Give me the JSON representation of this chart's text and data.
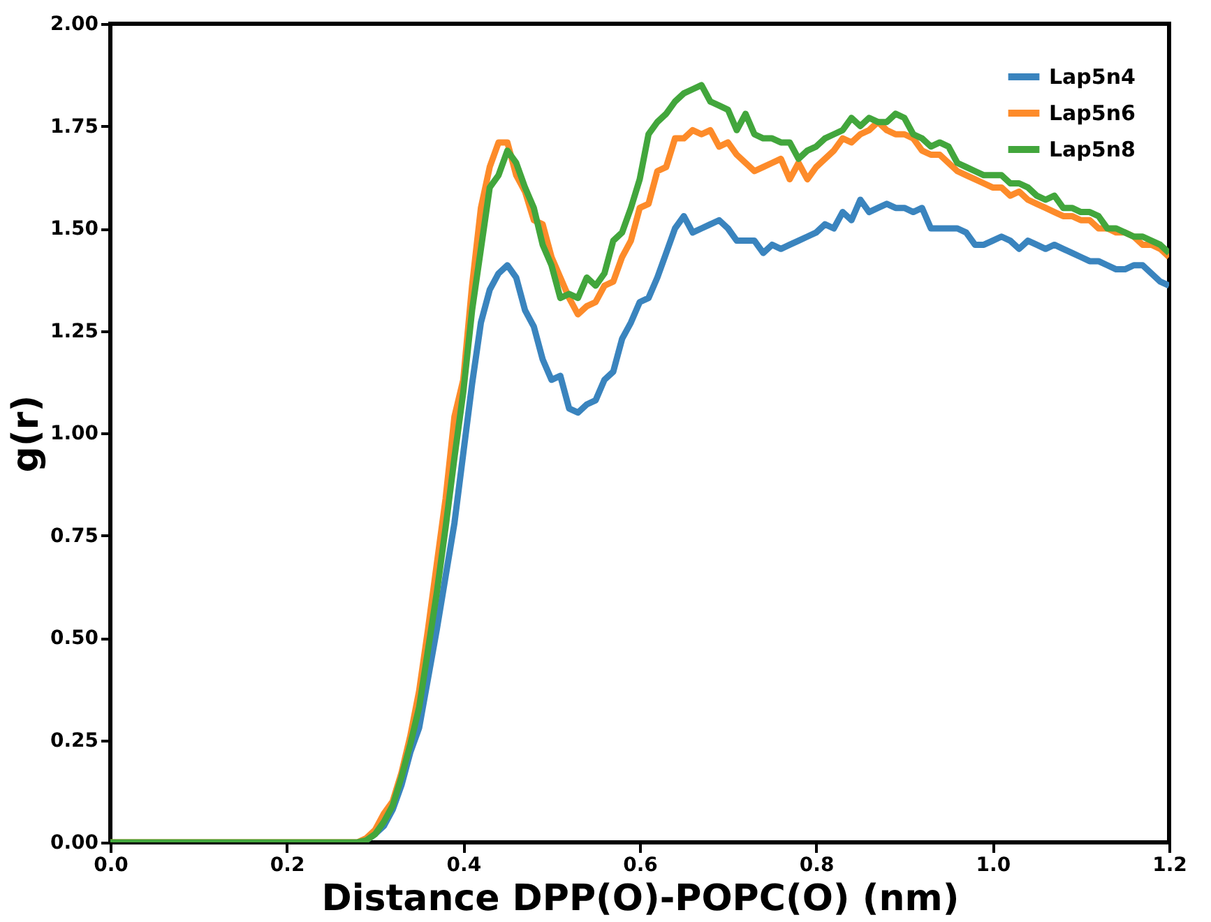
{
  "chart_data": {
    "type": "line",
    "xlabel": "Distance DPP(O)-POPC(O) (nm)",
    "ylabel": "g(r)",
    "x": [
      0,
      0.28,
      0.29,
      0.3,
      0.31,
      0.32,
      0.33,
      0.34,
      0.35,
      0.36,
      0.37,
      0.38,
      0.39,
      0.4,
      0.41,
      0.42,
      0.43,
      0.44,
      0.45,
      0.46,
      0.47,
      0.48,
      0.49,
      0.5,
      0.51,
      0.52,
      0.53,
      0.54,
      0.55,
      0.56,
      0.57,
      0.58,
      0.59,
      0.6,
      0.61,
      0.62,
      0.63,
      0.64,
      0.65,
      0.66,
      0.67,
      0.68,
      0.69,
      0.7,
      0.71,
      0.72,
      0.73,
      0.74,
      0.75,
      0.76,
      0.77,
      0.78,
      0.79,
      0.8,
      0.81,
      0.82,
      0.83,
      0.84,
      0.85,
      0.86,
      0.87,
      0.88,
      0.89,
      0.9,
      0.91,
      0.92,
      0.93,
      0.94,
      0.95,
      0.96,
      0.97,
      0.98,
      0.99,
      1.0,
      1.01,
      1.02,
      1.03,
      1.04,
      1.05,
      1.06,
      1.07,
      1.08,
      1.09,
      1.1,
      1.11,
      1.12,
      1.13,
      1.14,
      1.15,
      1.16,
      1.17,
      1.18,
      1.19,
      1.2
    ],
    "series": [
      {
        "name": "Lap5n4",
        "color": "#3a84be",
        "values": [
          null,
          null,
          0.005,
          0.02,
          0.04,
          0.08,
          0.14,
          0.22,
          0.28,
          0.4,
          0.52,
          0.65,
          0.78,
          0.95,
          1.12,
          1.27,
          1.35,
          1.39,
          1.41,
          1.38,
          1.3,
          1.26,
          1.18,
          1.13,
          1.14,
          1.06,
          1.05,
          1.07,
          1.08,
          1.13,
          1.15,
          1.23,
          1.27,
          1.32,
          1.33,
          1.38,
          1.44,
          1.5,
          1.53,
          1.49,
          1.5,
          1.51,
          1.52,
          1.5,
          1.47,
          1.47,
          1.47,
          1.44,
          1.46,
          1.45,
          1.46,
          1.47,
          1.48,
          1.49,
          1.51,
          1.5,
          1.54,
          1.52,
          1.57,
          1.54,
          1.55,
          1.56,
          1.55,
          1.55,
          1.54,
          1.55,
          1.5,
          1.5,
          1.5,
          1.5,
          1.49,
          1.46,
          1.46,
          1.47,
          1.48,
          1.47,
          1.45,
          1.47,
          1.46,
          1.45,
          1.46,
          1.45,
          1.44,
          1.43,
          1.42,
          1.42,
          1.41,
          1.4,
          1.4,
          1.41,
          1.41,
          1.39,
          1.37,
          1.36
        ]
      },
      {
        "name": "Lap5n6",
        "color": "#fd8b2a",
        "values": [
          0,
          0,
          0.01,
          0.03,
          0.07,
          0.1,
          0.17,
          0.26,
          0.37,
          0.52,
          0.68,
          0.84,
          1.04,
          1.13,
          1.36,
          1.55,
          1.65,
          1.71,
          1.71,
          1.63,
          1.59,
          1.52,
          1.51,
          1.43,
          1.38,
          1.33,
          1.29,
          1.31,
          1.32,
          1.36,
          1.37,
          1.43,
          1.47,
          1.55,
          1.56,
          1.64,
          1.65,
          1.72,
          1.72,
          1.74,
          1.73,
          1.74,
          1.7,
          1.71,
          1.68,
          1.66,
          1.64,
          1.65,
          1.66,
          1.67,
          1.62,
          1.66,
          1.62,
          1.65,
          1.67,
          1.69,
          1.72,
          1.71,
          1.73,
          1.74,
          1.76,
          1.74,
          1.73,
          1.73,
          1.72,
          1.69,
          1.68,
          1.68,
          1.66,
          1.64,
          1.63,
          1.62,
          1.61,
          1.6,
          1.6,
          1.58,
          1.59,
          1.57,
          1.56,
          1.55,
          1.54,
          1.53,
          1.53,
          1.52,
          1.52,
          1.5,
          1.5,
          1.49,
          1.49,
          1.48,
          1.46,
          1.46,
          1.45,
          1.43
        ]
      },
      {
        "name": "Lap5n8",
        "color": "#42a63c",
        "values": [
          0,
          0,
          0.005,
          0.02,
          0.05,
          0.09,
          0.16,
          0.24,
          0.33,
          0.47,
          0.61,
          0.77,
          0.94,
          1.1,
          1.3,
          1.45,
          1.6,
          1.63,
          1.69,
          1.66,
          1.6,
          1.55,
          1.46,
          1.41,
          1.33,
          1.34,
          1.33,
          1.38,
          1.36,
          1.39,
          1.47,
          1.49,
          1.55,
          1.62,
          1.73,
          1.76,
          1.78,
          1.81,
          1.83,
          1.84,
          1.85,
          1.81,
          1.8,
          1.79,
          1.74,
          1.78,
          1.73,
          1.72,
          1.72,
          1.71,
          1.71,
          1.67,
          1.69,
          1.7,
          1.72,
          1.73,
          1.74,
          1.77,
          1.75,
          1.77,
          1.76,
          1.76,
          1.78,
          1.77,
          1.73,
          1.72,
          1.7,
          1.71,
          1.7,
          1.66,
          1.65,
          1.64,
          1.63,
          1.63,
          1.63,
          1.61,
          1.61,
          1.6,
          1.58,
          1.57,
          1.58,
          1.55,
          1.55,
          1.54,
          1.54,
          1.53,
          1.5,
          1.5,
          1.49,
          1.48,
          1.48,
          1.47,
          1.46,
          1.44
        ]
      }
    ],
    "xlim": [
      0,
      1.2
    ],
    "xticks": [
      {
        "value": 0,
        "label": "0.0"
      },
      0.2,
      0.4,
      0.6,
      0.8,
      {
        "value": 1,
        "label": "1.0"
      },
      1.2
    ],
    "ylim": [
      0,
      2
    ],
    "yticks": [
      {
        "value": 0,
        "label": "0.00"
      },
      0.25,
      {
        "value": 0.5,
        "label": "0.50"
      },
      0.75,
      {
        "value": 1,
        "label": "1.00"
      },
      1.25,
      {
        "value": 1.5,
        "label": "1.50"
      },
      1.75,
      {
        "value": 2,
        "label": "2.00"
      }
    ],
    "legend": "top right",
    "grid": false,
    "line_style": "solid"
  }
}
